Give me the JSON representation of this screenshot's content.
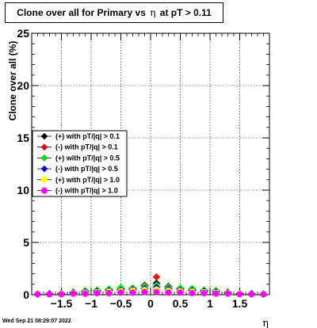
{
  "chart_data": {
    "type": "scatter",
    "title_prefix": "Clone  over all for Primary vs",
    "title_symbol": "η",
    "title_suffix": "at pT > 0.11",
    "xlabel": "η",
    "ylabel": "Clone  over all (%)",
    "xlim": [
      -2,
      2
    ],
    "ylim": [
      0,
      25
    ],
    "x_ticks": [
      -1.5,
      -1,
      -0.5,
      0,
      0.5,
      1,
      1.5
    ],
    "x_tick_labels": [
      "−1.5",
      "−1",
      "−0.5",
      "0",
      "0.5",
      "1",
      "1.5"
    ],
    "y_ticks": [
      0,
      5,
      10,
      15,
      20,
      25
    ],
    "y_tick_labels": [
      "0",
      "5",
      "10",
      "15",
      "20",
      "25"
    ],
    "grid": true,
    "legend_position": "left-middle",
    "x": [
      -1.9,
      -1.7,
      -1.5,
      -1.3,
      -1.1,
      -0.9,
      -0.7,
      -0.5,
      -0.3,
      -0.1,
      0.1,
      0.3,
      0.5,
      0.7,
      0.9,
      1.1,
      1.3,
      1.5,
      1.7,
      1.9
    ],
    "series": [
      {
        "name": "(+) with pT/|q| > 0.1",
        "color": "#000000",
        "values": [
          0.05,
          0.1,
          0.15,
          0.25,
          0.35,
          0.4,
          0.5,
          0.55,
          0.65,
          0.9,
          1.1,
          0.8,
          0.6,
          0.5,
          0.4,
          0.35,
          0.25,
          0.15,
          0.1,
          0.05
        ]
      },
      {
        "name": "(-) with pT/|q| > 0.1",
        "color": "#ff0000",
        "values": [
          0.05,
          0.1,
          0.15,
          0.2,
          0.3,
          0.35,
          0.45,
          0.5,
          0.6,
          0.85,
          1.7,
          0.75,
          0.55,
          0.45,
          0.35,
          0.3,
          0.2,
          0.15,
          0.1,
          0.05
        ]
      },
      {
        "name": "(+) with pT/|q| > 0.5",
        "color": "#00ff00",
        "values": [
          0.05,
          0.1,
          0.15,
          0.25,
          0.4,
          0.45,
          0.55,
          0.7,
          0.65,
          0.8,
          0.9,
          0.7,
          0.65,
          0.6,
          0.45,
          0.4,
          0.25,
          0.15,
          0.1,
          0.05
        ]
      },
      {
        "name": "(-) with pT/|q| > 0.5",
        "color": "#0000ff",
        "values": [
          0.05,
          0.1,
          0.1,
          0.2,
          0.3,
          0.35,
          0.4,
          0.45,
          0.5,
          0.6,
          0.7,
          0.55,
          0.45,
          0.4,
          0.35,
          0.3,
          0.2,
          0.1,
          0.1,
          0.05
        ]
      },
      {
        "name": "(+) with pT/|q| > 1.0",
        "color": "#ffff00",
        "values": [
          0.05,
          0.05,
          0.1,
          0.15,
          0.2,
          0.25,
          0.3,
          0.35,
          0.4,
          0.45,
          0.5,
          0.4,
          0.35,
          0.3,
          0.25,
          0.2,
          0.15,
          0.1,
          0.05,
          0.05
        ]
      },
      {
        "name": "(-) with pT/|q| > 1.0",
        "color": "#ff00ff",
        "values": [
          0.05,
          0.05,
          0.05,
          0.1,
          0.1,
          0.15,
          0.15,
          0.2,
          0.2,
          0.25,
          0.25,
          0.2,
          0.2,
          0.15,
          0.15,
          0.1,
          0.1,
          0.05,
          0.05,
          0.05
        ]
      }
    ]
  },
  "footer": {
    "date": "Wed Sep 21 08:29:07 2022"
  }
}
